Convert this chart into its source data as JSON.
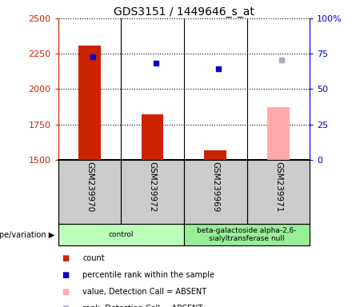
{
  "title": "GDS3151 / 1449646_s_at",
  "samples": [
    "GSM239970",
    "GSM239972",
    "GSM239969",
    "GSM239971"
  ],
  "bar_values": [
    2310,
    1820,
    1565,
    null
  ],
  "bar_color": "#cc2200",
  "absent_bar_values": [
    null,
    null,
    null,
    1870
  ],
  "absent_bar_color": "#ffaaaa",
  "rank_dots": [
    2230,
    2185,
    2145,
    null
  ],
  "rank_dot_color": "#0000cc",
  "absent_rank_dots": [
    null,
    null,
    null,
    2205
  ],
  "absent_rank_dot_color": "#aaaacc",
  "ylim_left": [
    1500,
    2500
  ],
  "ylim_right": [
    0,
    100
  ],
  "yticks_left": [
    1500,
    1750,
    2000,
    2250,
    2500
  ],
  "yticks_right": [
    0,
    25,
    50,
    75,
    100
  ],
  "ytick_labels_right": [
    "0",
    "25",
    "50",
    "75",
    "100%"
  ],
  "groups": [
    {
      "label": "control",
      "samples": [
        0,
        1
      ],
      "color": "#bbffbb"
    },
    {
      "label": "beta-galactoside alpha-2,6-\nsialyltransferase null",
      "samples": [
        2,
        3
      ],
      "color": "#99ee99"
    }
  ],
  "group_row_label": "genotype/variation",
  "legend_items": [
    {
      "label": "count",
      "color": "#cc2200"
    },
    {
      "label": "percentile rank within the sample",
      "color": "#0000cc"
    },
    {
      "label": "value, Detection Call = ABSENT",
      "color": "#ffaaaa"
    },
    {
      "label": "rank, Detection Call = ABSENT",
      "color": "#aaaacc"
    }
  ],
  "background_color": "#ffffff",
  "plot_bg_color": "#ffffff",
  "left_axis_color": "#cc2200",
  "right_axis_color": "#0000cc",
  "bar_width": 0.35,
  "sample_box_color": "#cccccc"
}
